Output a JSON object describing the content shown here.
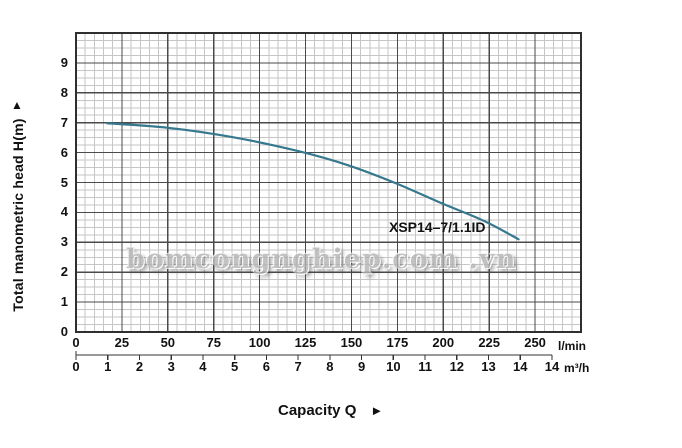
{
  "watermark_text": "bomcongnghiep.com .vn",
  "labels": {
    "capacity_title": "Capacity Q",
    "capacity_arrow": "►",
    "head_arrow": "▲"
  },
  "colors": {
    "curve": "#36798e",
    "grid_major": "#4a4a4a",
    "grid_minor": "#c6c6c6",
    "border": "#2f2f2f",
    "axis2": "#333333",
    "text": "#111111",
    "watermark": "#b3b3b3"
  },
  "chart_data": {
    "type": "line",
    "title": "",
    "xlabel": "Capacity Q",
    "ylabel": "Total manometric head H(m)",
    "grid": "major+minor",
    "legend": "none",
    "x_axis_primary": {
      "unit": "l/min",
      "tick_values": [
        0,
        25,
        50,
        75,
        100,
        125,
        150,
        175,
        200,
        225,
        250
      ],
      "range": [
        0,
        275
      ],
      "major_step": 25,
      "minor_step": 5
    },
    "x_axis_secondary": {
      "unit": "m³/h",
      "tick_labels": [
        "0",
        "1",
        "2",
        "3",
        "4",
        "5",
        "6",
        "7",
        "8",
        "9",
        "10",
        "11",
        "12",
        "13",
        "14",
        "14"
      ]
    },
    "y_axis": {
      "tick_values": [
        0,
        1,
        2,
        3,
        4,
        5,
        6,
        7,
        8,
        9
      ],
      "range": [
        0,
        10
      ],
      "major_step": 1,
      "minor_step": 0.25
    },
    "series": [
      {
        "name": "XSP14–7/1.1ID",
        "x_lmin": [
          17,
          50,
          85,
          121,
          148,
          174,
          199,
          222,
          241
        ],
        "head_m": [
          6.98,
          6.83,
          6.52,
          6.05,
          5.58,
          4.98,
          4.31,
          3.72,
          3.1
        ]
      }
    ]
  }
}
